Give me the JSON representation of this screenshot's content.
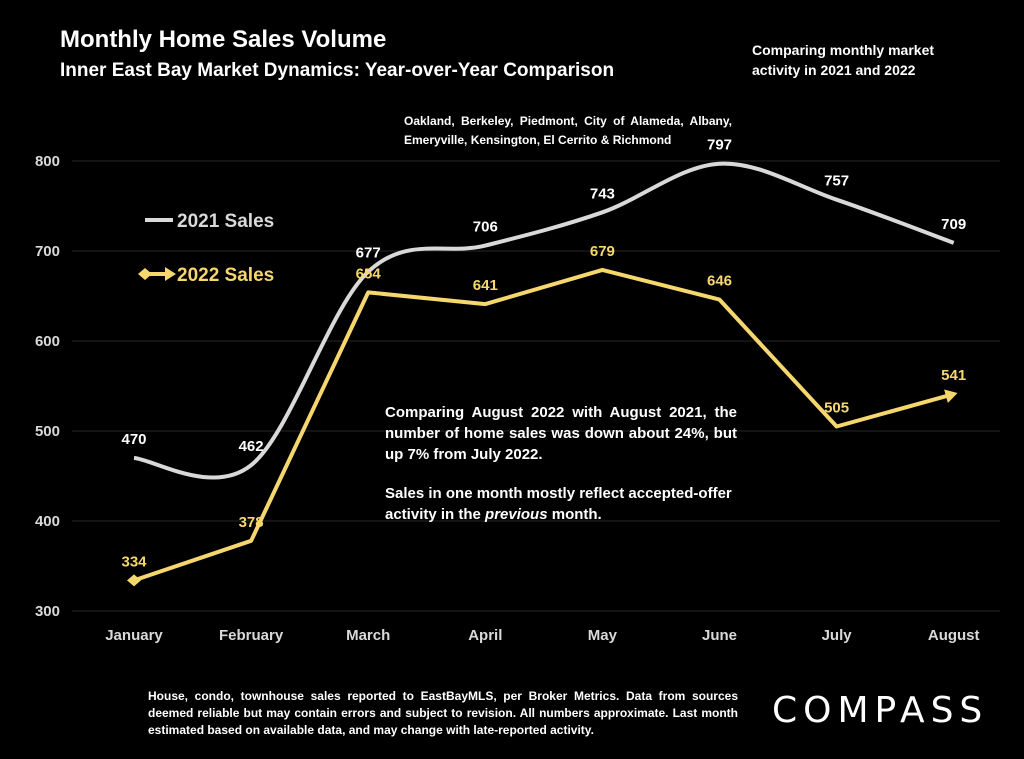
{
  "header": {
    "title": "Monthly Home Sales Volume",
    "subtitle": "Inner East Bay Market Dynamics: Year-over-Year Comparison",
    "note": "Comparing monthly market activity in 2021 and 2022",
    "region": "Oakland, Berkeley, Piedmont, City of Alameda, Albany, Emeryville, Kensington, El Cerrito & Richmond"
  },
  "annotation": {
    "paragraph1": "Comparing August 2022 with August 2021, the number of home sales was down about 24%, but up 7% from July 2022.",
    "paragraph2_before": "Sales in one month mostly reflect accepted-offer activity in the ",
    "paragraph2_em": "previous",
    "paragraph2_after": " month."
  },
  "footer": {
    "text": "House, condo, townhouse sales reported to EastBayMLS, per Broker Metrics. Data from sources deemed reliable but may contain errors and subject to revision. All numbers approximate. Last month estimated based on available data, and may change with late-reported activity."
  },
  "logo": {
    "text": "COMPASS"
  },
  "chart_data": {
    "type": "line",
    "title": "Monthly Home Sales Volume",
    "categories": [
      "January",
      "February",
      "March",
      "April",
      "May",
      "June",
      "July",
      "August"
    ],
    "ylim": [
      300,
      800
    ],
    "yticks": [
      300,
      400,
      500,
      600,
      700,
      800
    ],
    "grid": true,
    "legend_position": "top-left",
    "series": [
      {
        "name": "2021 Sales",
        "values": [
          470,
          462,
          677,
          706,
          743,
          797,
          757,
          709
        ],
        "color": "#d9d9d9",
        "smooth": true
      },
      {
        "name": "2022 Sales",
        "values": [
          334,
          378,
          654,
          641,
          679,
          646,
          505,
          541
        ],
        "color": "#f5d76e",
        "smooth": false
      }
    ]
  }
}
